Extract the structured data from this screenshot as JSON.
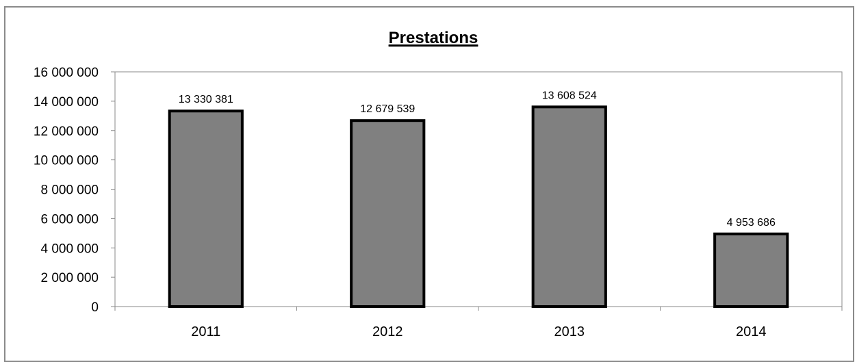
{
  "chart_data": {
    "type": "bar",
    "title": "Prestations",
    "categories": [
      "2011",
      "2012",
      "2013",
      "2014"
    ],
    "values": [
      13330381,
      12679539,
      13608524,
      4953686
    ],
    "data_labels": [
      "13 330 381",
      "12 679 539",
      "13 608 524",
      "4 953 686"
    ],
    "ylim": [
      0,
      16000000
    ],
    "yticks": [
      0,
      2000000,
      4000000,
      6000000,
      8000000,
      10000000,
      12000000,
      14000000,
      16000000
    ],
    "ytick_labels": [
      "0",
      "2 000 000",
      "4 000 000",
      "6 000 000",
      "8 000 000",
      "10 000 000",
      "12 000 000",
      "14 000 000",
      "16 000 000"
    ],
    "xlabel": "",
    "ylabel": "",
    "grid": false,
    "legend": "none",
    "colors": {
      "bar_fill": "#808080",
      "bar_edge": "#000000",
      "axis": "#8a8a8a"
    }
  }
}
